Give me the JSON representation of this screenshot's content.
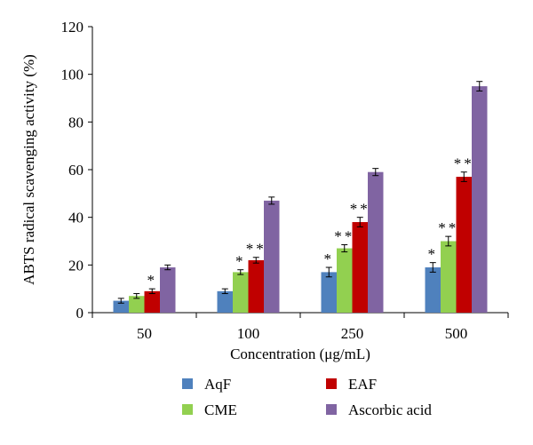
{
  "chart_data": {
    "type": "bar",
    "title": "",
    "xlabel": "Concentration (μg/mL)",
    "ylabel": "ABTS radical scavenging activity (%)",
    "categories": [
      "50",
      "100",
      "250",
      "500"
    ],
    "ylim": [
      0,
      120
    ],
    "yticks": [
      "0",
      "20",
      "40",
      "60",
      "80",
      "100",
      "120"
    ],
    "grid": false,
    "legend_position": "bottom",
    "series": [
      {
        "name": "AqF",
        "color": "#4f81bd",
        "values": [
          5,
          9,
          17,
          19
        ],
        "errors": [
          1,
          1,
          2,
          2
        ],
        "significance": [
          "",
          "",
          "*",
          "*"
        ]
      },
      {
        "name": "CME",
        "color": "#92d050",
        "values": [
          7,
          17,
          27,
          30
        ],
        "errors": [
          1,
          1,
          1.5,
          2
        ],
        "significance": [
          "",
          "*",
          "**",
          "**"
        ]
      },
      {
        "name": "EAF",
        "color": "#c00000",
        "values": [
          9,
          22,
          38,
          57
        ],
        "errors": [
          1,
          1.2,
          2,
          2
        ],
        "significance": [
          "*",
          "**",
          "**",
          "**"
        ]
      },
      {
        "name": "Ascorbic acid",
        "color": "#8064a2",
        "values": [
          19,
          47,
          59,
          95
        ],
        "errors": [
          1,
          1.5,
          1.5,
          2
        ],
        "significance": [
          "",
          "",
          "",
          ""
        ]
      }
    ]
  }
}
